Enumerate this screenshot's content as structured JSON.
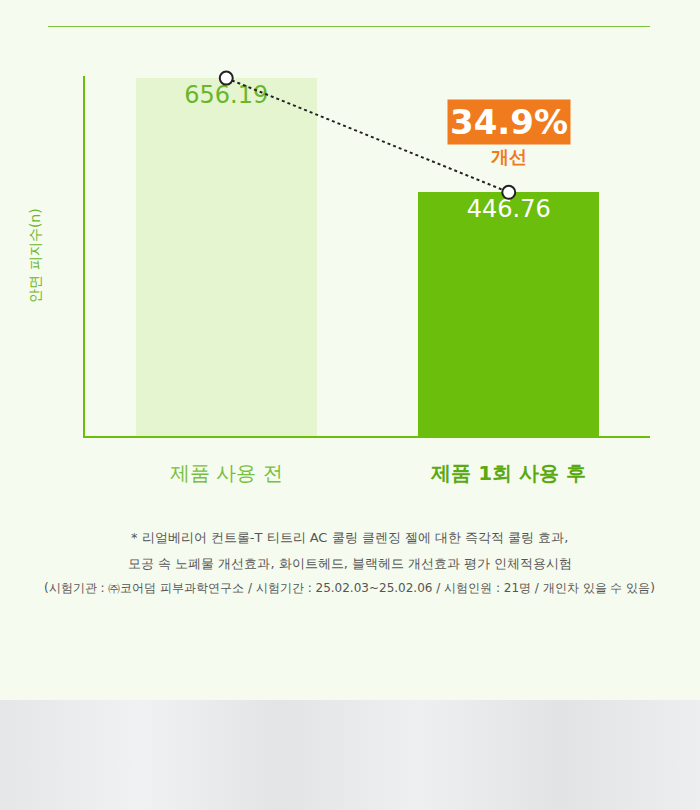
{
  "chart_data": {
    "type": "bar",
    "ylabel": "안면 피지수(n)",
    "categories": [
      "제품 사용 전",
      "제품 1회 사용 후"
    ],
    "values": [
      656.19,
      446.76
    ],
    "colors": [
      "#e5f5cf",
      "#6cbe0c"
    ],
    "ylim": [
      0,
      660
    ],
    "data_labels": true,
    "tick_labels": "x",
    "grid": false,
    "line_style": "dot",
    "marker": "circle",
    "annotations": [
      "34.9%",
      "개선"
    ],
    "footnote": [
      "* 리얼베리어 컨트롤-T 티트리 AC 쿨링 클렌징 젤에 대한 즉각적 쿨링 효과,",
      "모공 속 노폐물 개선효과, 화이트헤드, 블랙헤드 개선효과 평가 인체적용시험",
      "(시험기관 : ㈜코어덤 피부과학연구소 / 시험기간 : 25.02.03~25.02.06 / 시험인원 : 21명 / 개인차 있을 수 있음)"
    ]
  }
}
